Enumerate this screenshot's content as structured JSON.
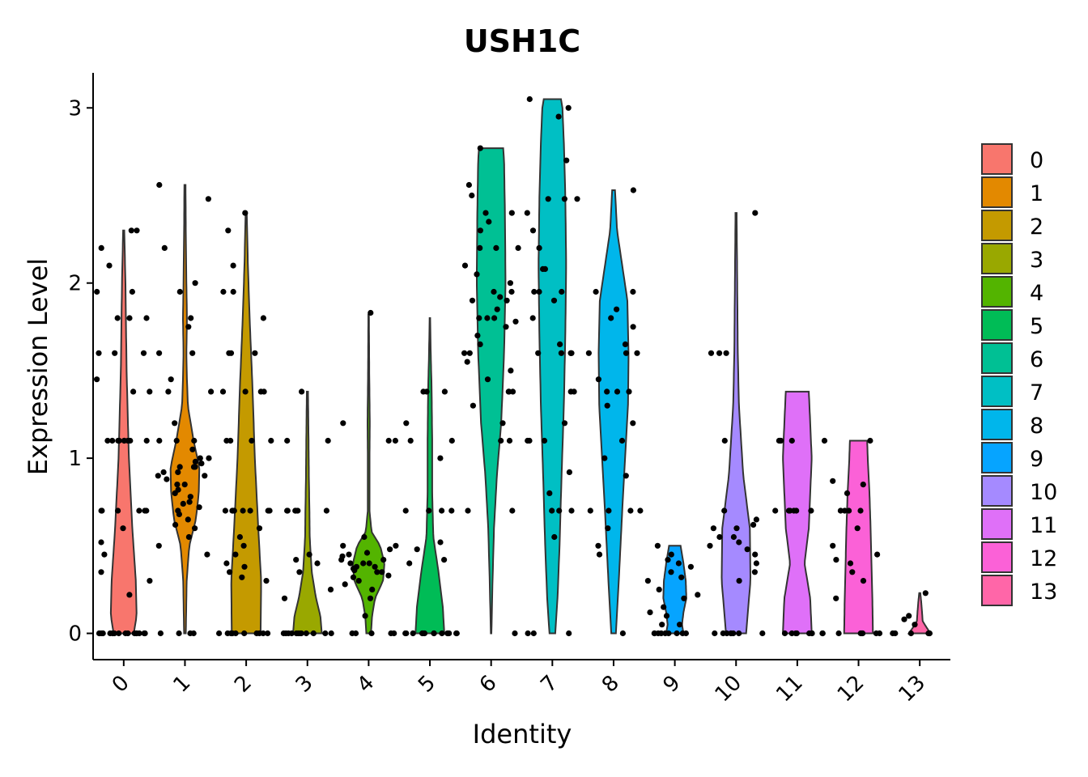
{
  "chart_data": {
    "type": "violin",
    "title": "USH1C",
    "xlabel": "Identity",
    "ylabel": "Expression Level",
    "ylim": [
      -0.15,
      3.2
    ],
    "yticks": [
      0,
      1,
      2,
      3
    ],
    "categories": [
      "0",
      "1",
      "2",
      "3",
      "4",
      "5",
      "6",
      "7",
      "8",
      "9",
      "10",
      "11",
      "12",
      "13"
    ],
    "legend_position": "right",
    "series": [
      {
        "name": "0",
        "color": "#F8766D",
        "max": 2.3,
        "profile": [
          [
            0,
            0.35
          ],
          [
            0.1,
            0.45
          ],
          [
            0.3,
            0.42
          ],
          [
            0.6,
            0.3
          ],
          [
            1.0,
            0.18
          ],
          [
            1.5,
            0.1
          ],
          [
            2.0,
            0.06
          ],
          [
            2.3,
            0.02
          ]
        ],
        "points": [
          0,
          0,
          0,
          0,
          0,
          0,
          0,
          0,
          0,
          0,
          0,
          0,
          0,
          0,
          0,
          0,
          0,
          0,
          0.22,
          0.3,
          0.35,
          0.45,
          0.52,
          0.6,
          0.7,
          0.7,
          0.7,
          0.7,
          0.7,
          0.7,
          1.1,
          1.1,
          1.1,
          1.1,
          1.1,
          1.1,
          1.1,
          1.1,
          1.1,
          1.38,
          1.38,
          1.45,
          1.6,
          1.6,
          1.6,
          1.8,
          1.8,
          1.8,
          1.95,
          1.95,
          2.1,
          2.2,
          2.3,
          2.3
        ]
      },
      {
        "name": "1",
        "color": "#E38900",
        "max": 2.56,
        "profile": [
          [
            0,
            0.03
          ],
          [
            0.3,
            0.06
          ],
          [
            0.5,
            0.15
          ],
          [
            0.65,
            0.38
          ],
          [
            0.8,
            0.48
          ],
          [
            0.95,
            0.5
          ],
          [
            1.1,
            0.3
          ],
          [
            1.3,
            0.1
          ],
          [
            1.45,
            0.07
          ],
          [
            1.6,
            0.05
          ],
          [
            1.8,
            0.07
          ],
          [
            2.0,
            0.05
          ],
          [
            2.3,
            0.03
          ],
          [
            2.56,
            0.02
          ]
        ],
        "points": [
          0,
          0,
          0,
          0,
          0.45,
          0.5,
          0.55,
          0.6,
          0.62,
          0.65,
          0.68,
          0.7,
          0.72,
          0.74,
          0.75,
          0.78,
          0.8,
          0.82,
          0.85,
          0.85,
          0.88,
          0.9,
          0.9,
          0.92,
          0.92,
          0.95,
          0.95,
          0.95,
          0.97,
          0.98,
          1.0,
          1.0,
          1.05,
          1.1,
          1.1,
          1.1,
          1.2,
          1.38,
          1.38,
          1.45,
          1.6,
          1.6,
          1.75,
          1.8,
          1.95,
          2.0,
          2.2,
          2.48,
          2.56
        ]
      },
      {
        "name": "2",
        "color": "#C49A00",
        "max": 2.4,
        "profile": [
          [
            0,
            0.5
          ],
          [
            0.3,
            0.52
          ],
          [
            0.6,
            0.42
          ],
          [
            1.0,
            0.3
          ],
          [
            1.4,
            0.22
          ],
          [
            1.8,
            0.12
          ],
          [
            2.1,
            0.06
          ],
          [
            2.4,
            0.02
          ]
        ],
        "points": [
          0,
          0,
          0,
          0,
          0,
          0,
          0,
          0,
          0,
          0,
          0,
          0.3,
          0.32,
          0.35,
          0.38,
          0.4,
          0.45,
          0.5,
          0.55,
          0.6,
          0.7,
          0.7,
          0.7,
          0.7,
          0.7,
          0.7,
          0.7,
          0.7,
          1.1,
          1.1,
          1.1,
          1.1,
          1.38,
          1.38,
          1.38,
          1.38,
          1.6,
          1.6,
          1.6,
          1.8,
          1.95,
          1.95,
          2.1,
          2.3,
          2.4
        ]
      },
      {
        "name": "3",
        "color": "#99A800",
        "max": 1.38,
        "profile": [
          [
            0,
            0.5
          ],
          [
            0.1,
            0.45
          ],
          [
            0.2,
            0.3
          ],
          [
            0.35,
            0.15
          ],
          [
            0.55,
            0.08
          ],
          [
            0.7,
            0.07
          ],
          [
            0.9,
            0.05
          ],
          [
            1.1,
            0.04
          ],
          [
            1.38,
            0.02
          ]
        ],
        "points": [
          0,
          0,
          0,
          0,
          0,
          0,
          0,
          0,
          0,
          0,
          0,
          0,
          0.2,
          0.25,
          0.35,
          0.4,
          0.42,
          0.45,
          0.7,
          0.7,
          0.7,
          0.7,
          0.7,
          0.7,
          1.1,
          1.1,
          1.38
        ]
      },
      {
        "name": "4",
        "color": "#53B400",
        "max": 1.82,
        "profile": [
          [
            0,
            0.08
          ],
          [
            0.1,
            0.12
          ],
          [
            0.2,
            0.22
          ],
          [
            0.3,
            0.5
          ],
          [
            0.4,
            0.55
          ],
          [
            0.5,
            0.4
          ],
          [
            0.58,
            0.1
          ],
          [
            0.7,
            0.03
          ],
          [
            1.0,
            0.03
          ],
          [
            1.2,
            0.04
          ],
          [
            1.5,
            0.02
          ],
          [
            1.82,
            0.01
          ]
        ],
        "points": [
          0,
          0,
          0,
          0,
          0,
          0.1,
          0.2,
          0.25,
          0.28,
          0.3,
          0.32,
          0.33,
          0.35,
          0.35,
          0.36,
          0.37,
          0.38,
          0.38,
          0.4,
          0.4,
          0.4,
          0.42,
          0.42,
          0.44,
          0.45,
          0.46,
          0.48,
          0.5,
          0.5,
          0.55,
          1.1,
          1.1,
          1.2,
          1.83
        ]
      },
      {
        "name": "5",
        "color": "#00BC56",
        "max": 1.8,
        "profile": [
          [
            0,
            0.5
          ],
          [
            0.15,
            0.45
          ],
          [
            0.35,
            0.3
          ],
          [
            0.55,
            0.12
          ],
          [
            0.8,
            0.08
          ],
          [
            1.1,
            0.08
          ],
          [
            1.4,
            0.06
          ],
          [
            1.6,
            0.03
          ],
          [
            1.8,
            0.01
          ]
        ],
        "points": [
          0,
          0,
          0,
          0,
          0,
          0,
          0,
          0,
          0,
          0,
          0,
          0,
          0,
          0,
          0.4,
          0.42,
          0.48,
          0.52,
          0.7,
          0.7,
          0.7,
          0.7,
          1.0,
          1.1,
          1.1,
          1.2,
          1.38,
          1.38,
          1.38
        ]
      },
      {
        "name": "6",
        "color": "#00C094",
        "max": 2.77,
        "profile": [
          [
            0,
            0.01
          ],
          [
            0.3,
            0.05
          ],
          [
            0.6,
            0.1
          ],
          [
            0.9,
            0.2
          ],
          [
            1.2,
            0.35
          ],
          [
            1.6,
            0.45
          ],
          [
            2.0,
            0.5
          ],
          [
            2.4,
            0.48
          ],
          [
            2.7,
            0.45
          ],
          [
            2.77,
            0.42
          ]
        ],
        "points": [
          0,
          0.7,
          0.7,
          1.1,
          1.1,
          1.2,
          1.3,
          1.38,
          1.38,
          1.38,
          1.45,
          1.5,
          1.55,
          1.6,
          1.6,
          1.65,
          1.7,
          1.75,
          1.78,
          1.8,
          1.8,
          1.8,
          1.85,
          1.9,
          1.9,
          1.92,
          1.95,
          1.95,
          2.0,
          2.05,
          2.1,
          2.2,
          2.2,
          2.2,
          2.3,
          2.35,
          2.4,
          2.4,
          2.5,
          2.56,
          2.77
        ]
      },
      {
        "name": "7",
        "color": "#00BFC4",
        "max": 3.05,
        "profile": [
          [
            0,
            0.1
          ],
          [
            0.2,
            0.18
          ],
          [
            0.5,
            0.25
          ],
          [
            0.9,
            0.32
          ],
          [
            1.3,
            0.4
          ],
          [
            1.7,
            0.45
          ],
          [
            2.1,
            0.48
          ],
          [
            2.5,
            0.45
          ],
          [
            2.8,
            0.4
          ],
          [
            3.0,
            0.35
          ],
          [
            3.05,
            0.3
          ]
        ],
        "points": [
          0,
          0,
          0,
          0.55,
          0.7,
          0.7,
          0.7,
          0.8,
          0.92,
          1.1,
          1.1,
          1.1,
          1.2,
          1.38,
          1.38,
          1.6,
          1.6,
          1.6,
          1.6,
          1.6,
          1.65,
          1.8,
          1.9,
          1.95,
          1.95,
          1.95,
          2.08,
          2.08,
          2.2,
          2.3,
          2.4,
          2.48,
          2.48,
          2.48,
          2.7,
          2.95,
          3.0,
          3.05
        ]
      },
      {
        "name": "8",
        "color": "#00B6EB",
        "max": 2.53,
        "profile": [
          [
            0,
            0.08
          ],
          [
            0.3,
            0.18
          ],
          [
            0.7,
            0.3
          ],
          [
            1.0,
            0.4
          ],
          [
            1.3,
            0.5
          ],
          [
            1.6,
            0.52
          ],
          [
            1.9,
            0.48
          ],
          [
            2.1,
            0.3
          ],
          [
            2.3,
            0.12
          ],
          [
            2.53,
            0.05
          ]
        ],
        "points": [
          0,
          0.45,
          0.5,
          0.6,
          0.7,
          0.7,
          0.7,
          0.7,
          0.9,
          1.0,
          1.1,
          1.2,
          1.3,
          1.38,
          1.38,
          1.38,
          1.45,
          1.6,
          1.6,
          1.6,
          1.65,
          1.75,
          1.8,
          1.85,
          1.95,
          1.95,
          2.53
        ]
      },
      {
        "name": "9",
        "color": "#06A4FF",
        "max": 0.5,
        "profile": [
          [
            0,
            0.3
          ],
          [
            0.05,
            0.25
          ],
          [
            0.12,
            0.3
          ],
          [
            0.2,
            0.4
          ],
          [
            0.3,
            0.38
          ],
          [
            0.4,
            0.3
          ],
          [
            0.5,
            0.2
          ]
        ],
        "points": [
          0,
          0,
          0,
          0,
          0,
          0,
          0,
          0,
          0,
          0.05,
          0.05,
          0.1,
          0.12,
          0.15,
          0.2,
          0.22,
          0.25,
          0.3,
          0.32,
          0.35,
          0.38,
          0.4,
          0.42,
          0.45,
          0.5
        ]
      },
      {
        "name": "10",
        "color": "#A58AFF",
        "max": 2.4,
        "profile": [
          [
            0,
            0.35
          ],
          [
            0.3,
            0.5
          ],
          [
            0.6,
            0.48
          ],
          [
            0.9,
            0.25
          ],
          [
            1.3,
            0.1
          ],
          [
            1.6,
            0.06
          ],
          [
            2.0,
            0.04
          ],
          [
            2.4,
            0.02
          ]
        ],
        "points": [
          0,
          0,
          0,
          0,
          0,
          0,
          0,
          0,
          0.3,
          0.35,
          0.4,
          0.45,
          0.48,
          0.5,
          0.52,
          0.55,
          0.55,
          0.6,
          0.6,
          0.62,
          0.65,
          0.7,
          1.1,
          1.6,
          1.6,
          1.6,
          2.4
        ]
      },
      {
        "name": "11",
        "color": "#DF70F8",
        "max": 1.38,
        "profile": [
          [
            0,
            0.5
          ],
          [
            0.2,
            0.45
          ],
          [
            0.4,
            0.25
          ],
          [
            0.6,
            0.4
          ],
          [
            0.8,
            0.45
          ],
          [
            1.0,
            0.5
          ],
          [
            1.2,
            0.45
          ],
          [
            1.38,
            0.4
          ]
        ],
        "points": [
          0,
          0,
          0,
          0,
          0,
          0,
          0,
          0,
          0,
          0.7,
          0.7,
          0.7,
          0.7,
          0.7,
          0.7,
          1.1,
          1.1,
          1.1,
          1.1,
          1.1
        ]
      },
      {
        "name": "12",
        "color": "#FB61D7",
        "max": 1.1,
        "profile": [
          [
            0,
            0.5
          ],
          [
            0.2,
            0.48
          ],
          [
            0.4,
            0.45
          ],
          [
            0.6,
            0.42
          ],
          [
            0.8,
            0.38
          ],
          [
            1.0,
            0.32
          ],
          [
            1.1,
            0.3
          ]
        ],
        "points": [
          0,
          0,
          0,
          0,
          0,
          0,
          0.2,
          0.3,
          0.35,
          0.4,
          0.42,
          0.45,
          0.5,
          0.6,
          0.7,
          0.7,
          0.7,
          0.7,
          0.8,
          0.85,
          0.87,
          1.1
        ]
      },
      {
        "name": "13",
        "color": "#FF66A8",
        "max": 0.23,
        "profile": [
          [
            0,
            0.38
          ],
          [
            0.03,
            0.25
          ],
          [
            0.07,
            0.1
          ],
          [
            0.12,
            0.08
          ],
          [
            0.18,
            0.05
          ],
          [
            0.23,
            0.02
          ]
        ],
        "points": [
          0,
          0,
          0,
          0,
          0,
          0,
          0.05,
          0.08,
          0.1,
          0.23
        ]
      }
    ]
  }
}
